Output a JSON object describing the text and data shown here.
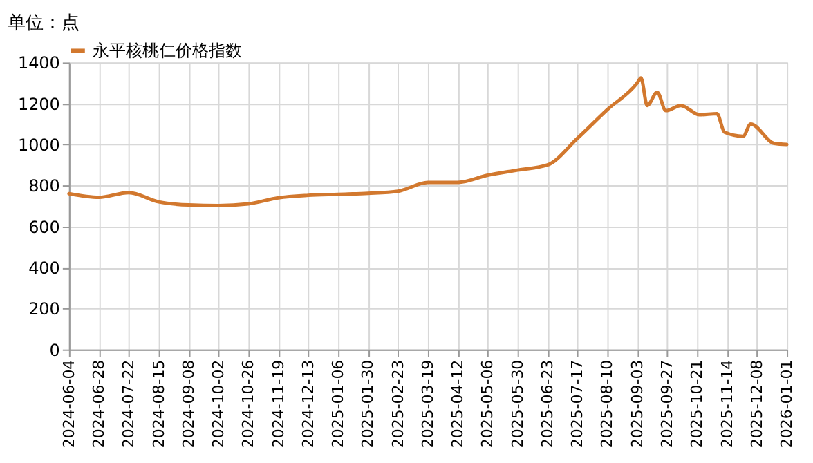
{
  "chart_data": {
    "type": "line",
    "ylabel": "单位：点",
    "legend": "top",
    "grid": true,
    "x": [
      "2024-06-04",
      "2024-06-28",
      "2024-07-22",
      "2024-08-15",
      "2024-09-08",
      "2024-10-02",
      "2024-10-26",
      "2024-11-19",
      "2024-12-13",
      "2025-01-06",
      "2025-01-30",
      "2025-02-23",
      "2025-03-19",
      "2025-04-12",
      "2025-05-06",
      "2025-05-30",
      "2025-06-23",
      "2025-07-17",
      "2025-08-10",
      "2025-09-03",
      "2025-09-06",
      "2025-09-11",
      "2025-09-19",
      "2025-09-26",
      "2025-10-08",
      "2025-10-23",
      "2025-11-06",
      "2025-11-12",
      "2025-11-27",
      "2025-12-03",
      "2025-12-22",
      "2026-01-01"
    ],
    "series": [
      {
        "name": "永平核桃仁价格指数",
        "color": "#d2782e",
        "values": [
          760,
          742,
          765,
          720,
          705,
          702,
          710,
          740,
          752,
          757,
          762,
          772,
          815,
          815,
          850,
          875,
          900,
          1030,
          1170,
          1300,
          1325,
          1190,
          1255,
          1165,
          1190,
          1145,
          1150,
          1060,
          1040,
          1100,
          1005,
          1000
        ]
      }
    ],
    "xlim": [
      "2024-06-04",
      "2026-01-01"
    ],
    "xticks": [
      "2024-06-04",
      "2024-06-28",
      "2024-07-22",
      "2024-08-15",
      "2024-09-08",
      "2024-10-02",
      "2024-10-26",
      "2024-11-19",
      "2024-12-13",
      "2025-01-06",
      "2025-01-30",
      "2025-02-23",
      "2025-03-19",
      "2025-04-12",
      "2025-05-06",
      "2025-05-30",
      "2025-06-23",
      "2025-07-17",
      "2025-08-10",
      "2025-09-03",
      "2025-09-27",
      "2025-10-21",
      "2025-11-14",
      "2025-12-08",
      "2026-01-01"
    ],
    "ylim": [
      0,
      1400
    ],
    "yticks": [
      0,
      200,
      400,
      600,
      800,
      1000,
      1200,
      1400
    ]
  }
}
